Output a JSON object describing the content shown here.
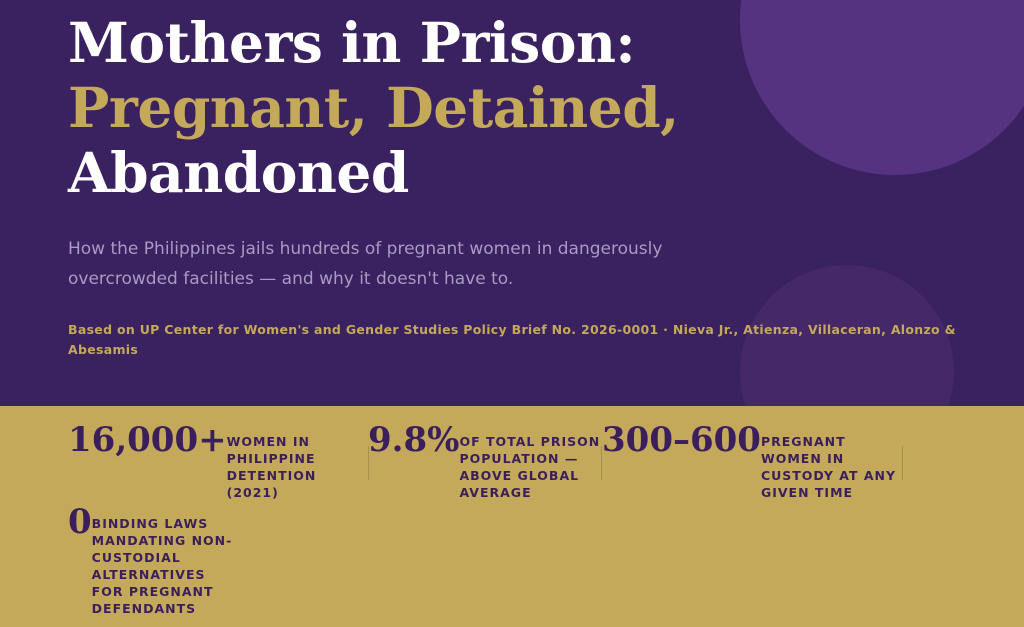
{
  "hero": {
    "title_line1": "Mothers in Prison:",
    "title_line2": "Pregnant, Detained,",
    "title_line3": "Abandoned",
    "subtitle": "How the Philippines jails hundreds of pregnant women in dangerously overcrowded facilities — and why it doesn't have to.",
    "source": "Based on UP Center for Women's and Gender Studies Policy Brief No. 2026-0001 · Nieva Jr., Atienza, Villaceran, Alonzo & Abesamis"
  },
  "colors": {
    "purple": "#3a2160",
    "gold": "#c4a95a",
    "accent_circle": "#553380"
  },
  "stats": [
    {
      "number": "16,000+",
      "label": "WOMEN IN PHILIPPINE DETENTION (2021)"
    },
    {
      "number": "9.8%",
      "label": "OF TOTAL PRISON POPULATION — ABOVE GLOBAL AVERAGE"
    },
    {
      "number": "300–600",
      "label": "PREGNANT WOMEN IN CUSTODY AT ANY GIVEN TIME"
    },
    {
      "number": "0",
      "label": "BINDING LAWS MANDATING NON-CUSTODIAL ALTERNATIVES FOR PREGNANT DEFENDANTS"
    }
  ]
}
